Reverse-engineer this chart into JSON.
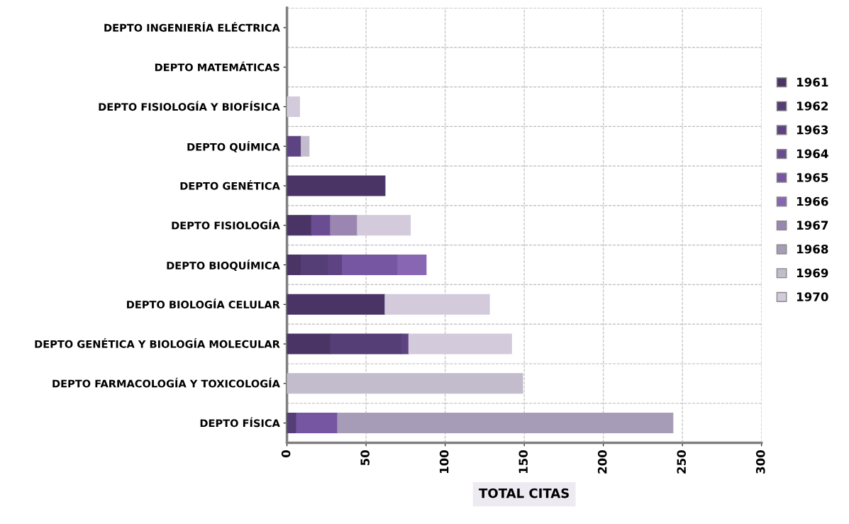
{
  "chart_data": {
    "type": "bar",
    "orientation": "horizontal",
    "stacked": true,
    "xlabel": "TOTAL CITAS",
    "categories": [
      "DEPTO INGENIERÍA ELÉCTRICA",
      "DEPTO MATEMÁTICAS",
      "DEPTO FISIOLOGÍA Y BIOFÍSICA",
      "DEPTO QUÍMICA",
      "DEPTO GENÉTICA",
      "DEPTO FISIOLOGÍA",
      "DEPTO BIOQUÍMICA",
      "DEPTO BIOLOGÍA CELULAR",
      "DEPTO GENÉTICA Y BIOLOGÍA MOLECULAR",
      "DEPTO FARMACOLOGÍA Y TOXICOLOGÍA",
      "DEPTO FÍSICA"
    ],
    "series": [
      {
        "name": "1961",
        "color": "#4a3466",
        "values": [
          0,
          0,
          0,
          0,
          62,
          15.5,
          9,
          62,
          27.5,
          0,
          0
        ]
      },
      {
        "name": "1962",
        "color": "#553d75",
        "values": [
          0,
          0,
          0,
          0,
          0,
          0,
          17,
          0,
          45,
          0,
          6
        ]
      },
      {
        "name": "1963",
        "color": "#5e4382",
        "values": [
          0,
          0,
          0,
          9,
          0,
          0,
          9,
          0,
          4.5,
          0,
          0
        ]
      },
      {
        "name": "1964",
        "color": "#6a4c92",
        "values": [
          0,
          0,
          0,
          0,
          0,
          12,
          0,
          0,
          0,
          0,
          0
        ]
      },
      {
        "name": "1965",
        "color": "#7655a3",
        "values": [
          0,
          0,
          0,
          0,
          0,
          0,
          35,
          0,
          0,
          0,
          26
        ]
      },
      {
        "name": "1966",
        "color": "#8866b3",
        "values": [
          0,
          0,
          0,
          0,
          0,
          0,
          18,
          0,
          0,
          0,
          0
        ]
      },
      {
        "name": "1967",
        "color": "#9a86b0",
        "values": [
          0,
          0,
          0,
          0,
          0,
          17,
          0,
          0,
          0,
          0,
          0
        ]
      },
      {
        "name": "1968",
        "color": "#a79cb8",
        "values": [
          0,
          0,
          0,
          0,
          0,
          0,
          0,
          0,
          0,
          0,
          212
        ]
      },
      {
        "name": "1969",
        "color": "#c3bccc",
        "values": [
          0,
          0,
          0,
          5,
          0,
          0,
          0,
          0,
          0,
          149,
          0
        ]
      },
      {
        "name": "1970",
        "color": "#d3cbdc",
        "values": [
          0,
          0,
          8,
          0,
          0,
          33.5,
          0,
          66,
          65,
          0,
          0
        ]
      }
    ],
    "xlim": [
      0,
      300
    ],
    "xticks": [
      0,
      50,
      100,
      150,
      200,
      250,
      300
    ],
    "grid": true,
    "legend": "right"
  }
}
